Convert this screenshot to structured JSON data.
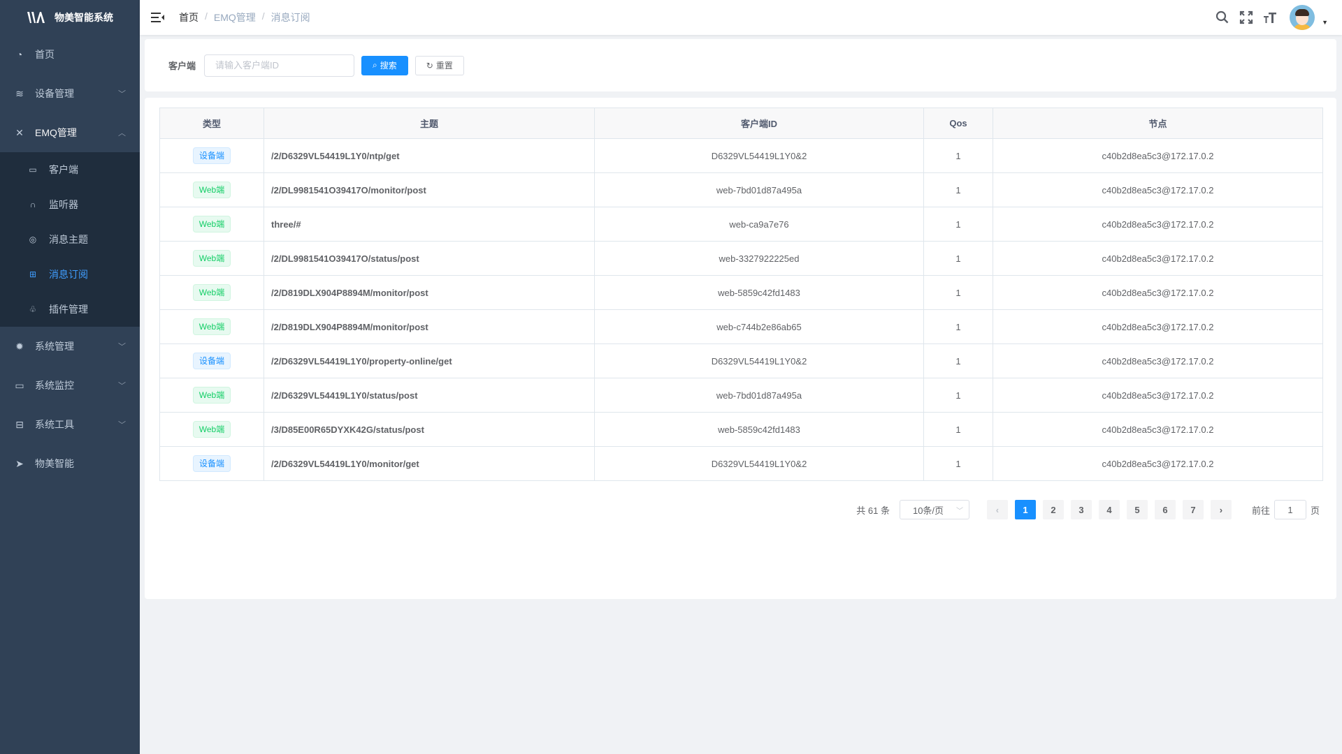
{
  "app": {
    "title": "物美智能系统"
  },
  "sidebar": {
    "items": [
      {
        "label": "首页",
        "icon": "dashboard-icon"
      },
      {
        "label": "设备管理",
        "icon": "device-icon"
      },
      {
        "label": "EMQ管理",
        "icon": "emq-icon",
        "expanded": true,
        "children": [
          {
            "label": "客户端",
            "icon": "client-icon"
          },
          {
            "label": "监听器",
            "icon": "headset-icon"
          },
          {
            "label": "消息主题",
            "icon": "topic-icon"
          },
          {
            "label": "消息订阅",
            "icon": "subscribe-icon",
            "active": true
          },
          {
            "label": "插件管理",
            "icon": "plugin-icon"
          }
        ]
      },
      {
        "label": "系统管理",
        "icon": "gear-icon"
      },
      {
        "label": "系统监控",
        "icon": "monitor-icon"
      },
      {
        "label": "系统工具",
        "icon": "toolbox-icon"
      },
      {
        "label": "物美智能",
        "icon": "paper-plane-icon"
      }
    ]
  },
  "breadcrumb": [
    "首页",
    "EMQ管理",
    "消息订阅"
  ],
  "search": {
    "label": "客户端",
    "placeholder": "请输入客户端ID",
    "value": "",
    "search_label": "搜索",
    "reset_label": "重置"
  },
  "table": {
    "columns": [
      "类型",
      "主题",
      "客户端ID",
      "Qos",
      "节点"
    ],
    "rows": [
      {
        "type": "设备端",
        "kind": "dev",
        "topic": "/2/D6329VL54419L1Y0/ntp/get",
        "client": "D6329VL54419L1Y0&2",
        "qos": "1",
        "node": "c40b2d8ea5c3@172.17.0.2"
      },
      {
        "type": "Web端",
        "kind": "web",
        "topic": "/2/DL9981541O39417O/monitor/post",
        "client": "web-7bd01d87a495a",
        "qos": "1",
        "node": "c40b2d8ea5c3@172.17.0.2"
      },
      {
        "type": "Web端",
        "kind": "web",
        "topic": "three/#",
        "client": "web-ca9a7e76",
        "qos": "1",
        "node": "c40b2d8ea5c3@172.17.0.2"
      },
      {
        "type": "Web端",
        "kind": "web",
        "topic": "/2/DL9981541O39417O/status/post",
        "client": "web-3327922225ed",
        "qos": "1",
        "node": "c40b2d8ea5c3@172.17.0.2"
      },
      {
        "type": "Web端",
        "kind": "web",
        "topic": "/2/D819DLX904P8894M/monitor/post",
        "client": "web-5859c42fd1483",
        "qos": "1",
        "node": "c40b2d8ea5c3@172.17.0.2"
      },
      {
        "type": "Web端",
        "kind": "web",
        "topic": "/2/D819DLX904P8894M/monitor/post",
        "client": "web-c744b2e86ab65",
        "qos": "1",
        "node": "c40b2d8ea5c3@172.17.0.2"
      },
      {
        "type": "设备端",
        "kind": "dev",
        "topic": "/2/D6329VL54419L1Y0/property-online/get",
        "client": "D6329VL54419L1Y0&2",
        "qos": "1",
        "node": "c40b2d8ea5c3@172.17.0.2"
      },
      {
        "type": "Web端",
        "kind": "web",
        "topic": "/2/D6329VL54419L1Y0/status/post",
        "client": "web-7bd01d87a495a",
        "qos": "1",
        "node": "c40b2d8ea5c3@172.17.0.2"
      },
      {
        "type": "Web端",
        "kind": "web",
        "topic": "/3/D85E00R65DYXK42G/status/post",
        "client": "web-5859c42fd1483",
        "qos": "1",
        "node": "c40b2d8ea5c3@172.17.0.2"
      },
      {
        "type": "设备端",
        "kind": "dev",
        "topic": "/2/D6329VL54419L1Y0/monitor/get",
        "client": "D6329VL54419L1Y0&2",
        "qos": "1",
        "node": "c40b2d8ea5c3@172.17.0.2"
      }
    ]
  },
  "pagination": {
    "total": "共 61 条",
    "page_size": "10条/页",
    "pages": [
      "1",
      "2",
      "3",
      "4",
      "5",
      "6",
      "7"
    ],
    "current": "1",
    "goto_label": "前往",
    "goto_value": "1",
    "page_suffix": "页"
  },
  "colors": {
    "sidebar": "#304156",
    "submenu": "#1f2d3d",
    "accent": "#1890ff",
    "web_tag": "#13ce66"
  }
}
